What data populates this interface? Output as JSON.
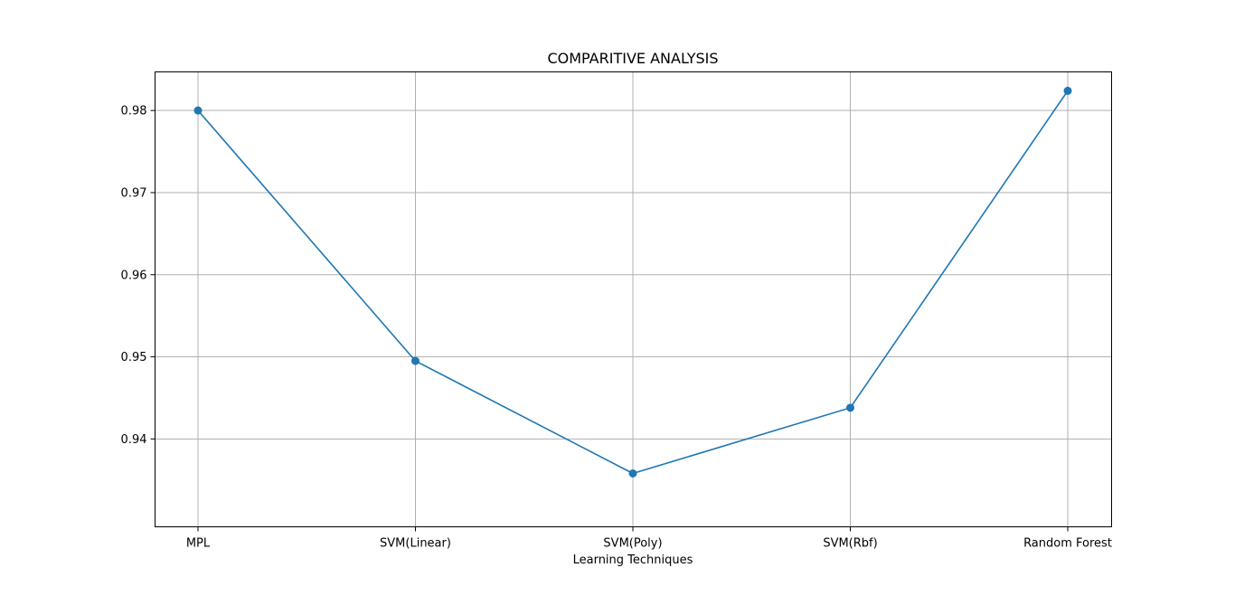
{
  "chart_data": {
    "type": "line",
    "title": "COMPARITIVE ANALYSIS",
    "xlabel": "Learning Techniques",
    "ylabel": "",
    "categories": [
      "MPL",
      "SVM(Linear)",
      "SVM(Poly)",
      "SVM(Rbf)",
      "Random Forest"
    ],
    "series": [
      {
        "values": [
          0.98,
          0.9495,
          0.9358,
          0.9438,
          0.9824
        ]
      }
    ],
    "ylim": [
      0.9293,
      0.9847
    ],
    "yticks": [
      0.94,
      0.95,
      0.96,
      0.97,
      0.98
    ],
    "ytick_labels": [
      "0.94",
      "0.95",
      "0.96",
      "0.97",
      "0.98"
    ],
    "grid": true,
    "legend": "none",
    "marker": "circle",
    "colors": {
      "line": "#1f77b4",
      "grid": "#b0b0b0",
      "axis": "#000000"
    }
  }
}
